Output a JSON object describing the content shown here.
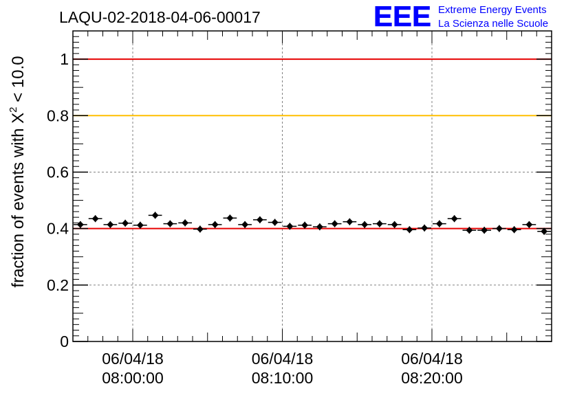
{
  "header": {
    "run_id": "LAQU-02-2018-04-06-00017",
    "logo_text": "EEE",
    "logo_line1": "Extreme Energy Events",
    "logo_line2": "La Scienza nelle Scuole"
  },
  "colors": {
    "axis": "#000000",
    "grid": "#808080",
    "red_line": "#e60000",
    "yellow_line": "#ffbf00",
    "logo": "#0000ff",
    "points": "#000000"
  },
  "chart_data": {
    "type": "scatter",
    "ylabel_prefix": "fraction of events with ",
    "ylabel_symbol": "X",
    "ylabel_power": "2",
    "ylabel_suffix": " < 10.0",
    "ylim": [
      0,
      1.1
    ],
    "y_ticks": [
      {
        "value": 0,
        "label": "0"
      },
      {
        "value": 0.2,
        "label": "0.2"
      },
      {
        "value": 0.4,
        "label": "0.4"
      },
      {
        "value": 0.6,
        "label": "0.6"
      },
      {
        "value": 0.8,
        "label": "0.8"
      },
      {
        "value": 1,
        "label": "1"
      }
    ],
    "x_range_minutes": [
      -4,
      28
    ],
    "x_ticks": [
      {
        "minute": 0,
        "date": "06/04/18",
        "time": "08:00:00"
      },
      {
        "minute": 10,
        "date": "06/04/18",
        "time": "08:10:00"
      },
      {
        "minute": 20,
        "date": "06/04/18",
        "time": "08:20:00"
      }
    ],
    "reference_lines": [
      {
        "value": 1.0,
        "color": "#e60000"
      },
      {
        "value": 0.8,
        "color": "#ffbf00"
      },
      {
        "value": 0.4,
        "color": "#e60000"
      }
    ],
    "grid": true,
    "bin_width_minutes": 1,
    "points": [
      {
        "x": -3.5,
        "y": 0.414
      },
      {
        "x": -2.5,
        "y": 0.435
      },
      {
        "x": -1.5,
        "y": 0.414
      },
      {
        "x": -0.5,
        "y": 0.419
      },
      {
        "x": 0.5,
        "y": 0.412
      },
      {
        "x": 1.5,
        "y": 0.447
      },
      {
        "x": 2.5,
        "y": 0.417
      },
      {
        "x": 3.5,
        "y": 0.42
      },
      {
        "x": 4.5,
        "y": 0.398
      },
      {
        "x": 5.5,
        "y": 0.414
      },
      {
        "x": 6.5,
        "y": 0.437
      },
      {
        "x": 7.5,
        "y": 0.414
      },
      {
        "x": 8.5,
        "y": 0.431
      },
      {
        "x": 9.5,
        "y": 0.422
      },
      {
        "x": 10.5,
        "y": 0.408
      },
      {
        "x": 11.5,
        "y": 0.412
      },
      {
        "x": 12.5,
        "y": 0.406
      },
      {
        "x": 13.5,
        "y": 0.417
      },
      {
        "x": 14.5,
        "y": 0.424
      },
      {
        "x": 15.5,
        "y": 0.414
      },
      {
        "x": 16.5,
        "y": 0.417
      },
      {
        "x": 17.5,
        "y": 0.414
      },
      {
        "x": 18.5,
        "y": 0.396
      },
      {
        "x": 19.5,
        "y": 0.402
      },
      {
        "x": 20.5,
        "y": 0.417
      },
      {
        "x": 21.5,
        "y": 0.435
      },
      {
        "x": 22.5,
        "y": 0.394
      },
      {
        "x": 23.5,
        "y": 0.394
      },
      {
        "x": 24.5,
        "y": 0.4
      },
      {
        "x": 25.5,
        "y": 0.396
      },
      {
        "x": 26.5,
        "y": 0.414
      },
      {
        "x": 27.5,
        "y": 0.39
      }
    ]
  }
}
